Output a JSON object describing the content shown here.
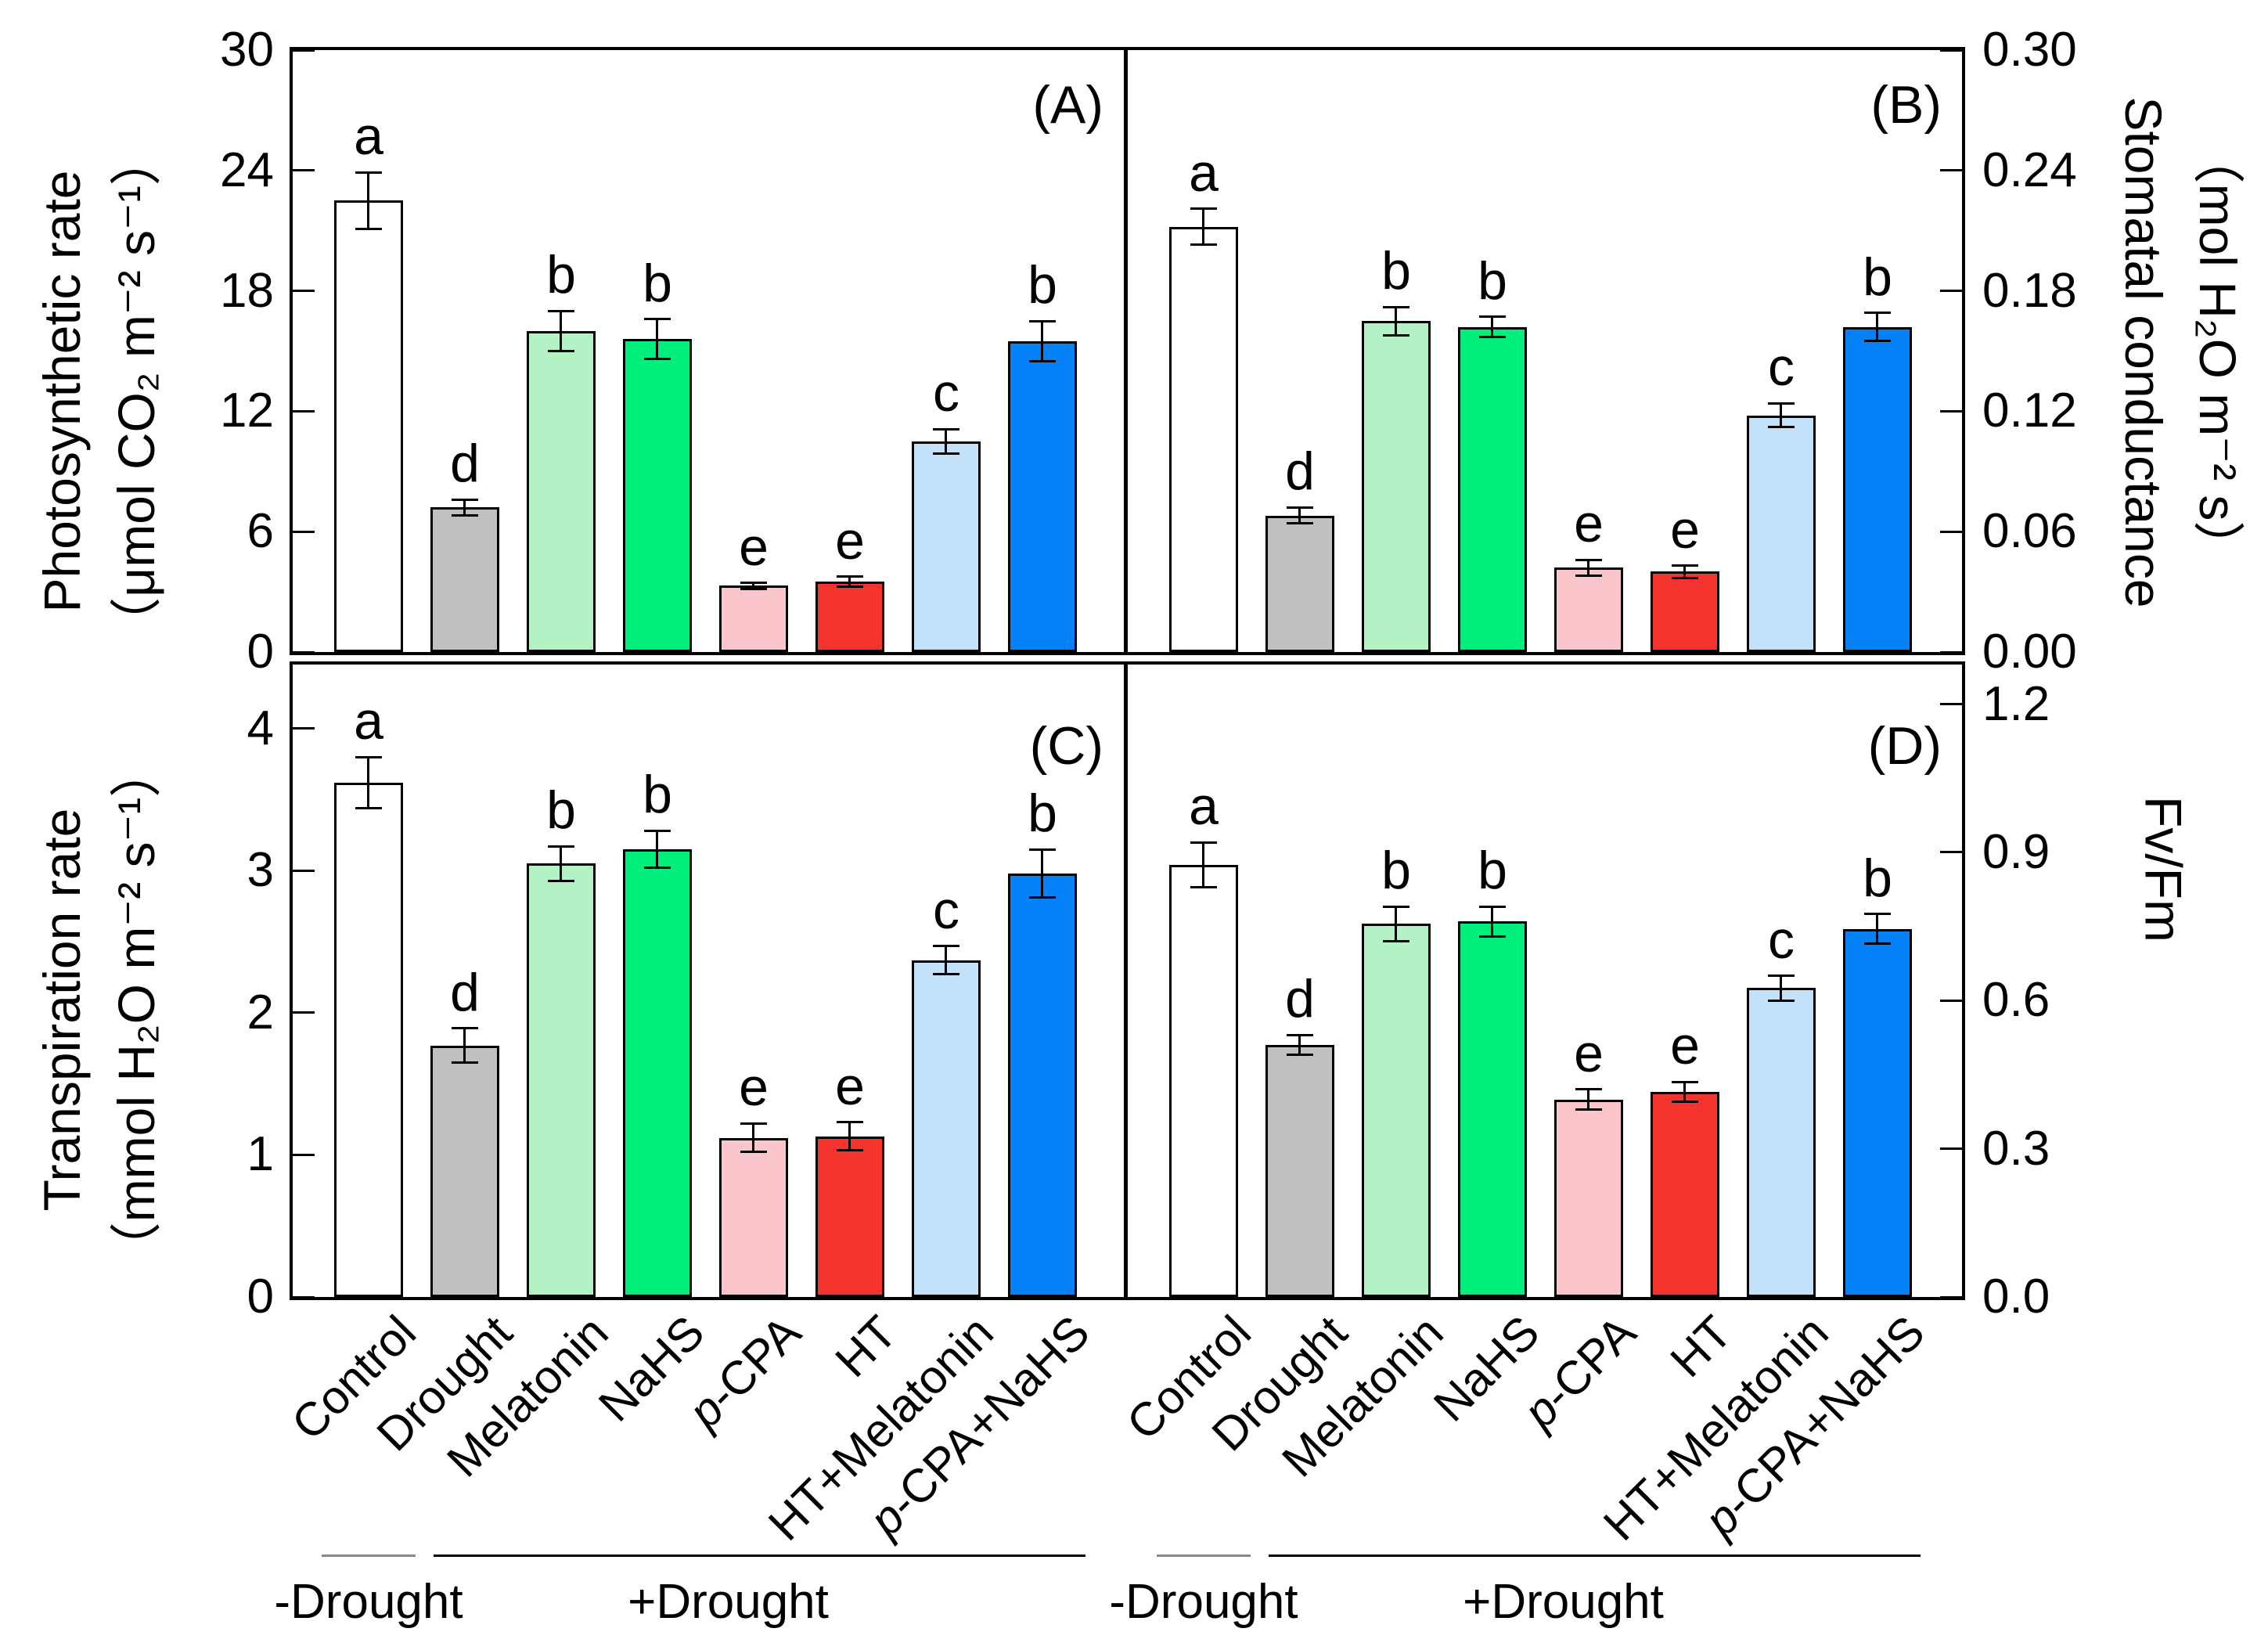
{
  "figure": {
    "categories": [
      "Control",
      "Drought",
      "Melatonin",
      "NaHS",
      "p-CPA",
      "HT",
      "HT+Melatonin",
      "p-CPA+NaHS"
    ],
    "bar_colors": [
      "#FFFFFF",
      "#C0C0C0",
      "#B2F2C4",
      "#00EE7C",
      "#FBC6CB",
      "#F53430",
      "#C3E1F8",
      "#0680F6"
    ],
    "bar_border_color": "#000000",
    "groups": [
      {
        "label": "-Drought",
        "start": 0,
        "end": 0
      },
      {
        "label": "+Drought",
        "start": 1,
        "end": 7
      }
    ]
  },
  "chart_data": [
    {
      "type": "bar",
      "panel": "A",
      "corner_label": "(A)",
      "axis_side": "left",
      "title_lines": [
        "Photosynthetic rate",
        "（μmol CO₂ m⁻² s⁻¹）"
      ],
      "ylabel": "Photosynthetic rate (umol CO2 m-2 s-1)",
      "ylim": [
        0,
        30
      ],
      "frame_top": 30,
      "ytick_labels": [
        "0",
        "6",
        "12",
        "18",
        "24",
        "30"
      ],
      "ytick_values": [
        0,
        6,
        12,
        18,
        24,
        30
      ],
      "values": [
        22.5,
        7.2,
        16.0,
        15.6,
        3.3,
        3.5,
        10.5,
        15.5
      ],
      "errors": [
        1.4,
        0.4,
        1.0,
        1.0,
        0.15,
        0.25,
        0.6,
        1.0
      ],
      "letters": [
        "a",
        "d",
        "b",
        "b",
        "e",
        "e",
        "c",
        "b"
      ]
    },
    {
      "type": "bar",
      "panel": "B",
      "corner_label": "(B)",
      "axis_side": "right",
      "title_lines": [
        "Stomatal conductance",
        "（mol H₂O m⁻² s）"
      ],
      "ylabel": "Stomatal conductance (mol H2O m-2 s)",
      "ylim": [
        0,
        0.3
      ],
      "frame_top": 0.3,
      "ytick_labels": [
        "0.00",
        "0.06",
        "0.12",
        "0.18",
        "0.24",
        "0.30"
      ],
      "ytick_values": [
        0,
        0.06,
        0.12,
        0.18,
        0.24,
        0.3
      ],
      "values": [
        0.212,
        0.068,
        0.165,
        0.162,
        0.042,
        0.04,
        0.118,
        0.162
      ],
      "errors": [
        0.009,
        0.004,
        0.007,
        0.005,
        0.004,
        0.003,
        0.006,
        0.007
      ],
      "letters": [
        "a",
        "d",
        "b",
        "b",
        "e",
        "e",
        "c",
        "b"
      ]
    },
    {
      "type": "bar",
      "panel": "C",
      "corner_label": "(C)",
      "axis_side": "left",
      "title_lines": [
        "Transpiration rate",
        "（mmol H₂O m⁻² s⁻¹）"
      ],
      "ylabel": "Transpiration rate (mmol H2O m-2 s-1)",
      "ylim": [
        0,
        4
      ],
      "frame_top": 4.45,
      "ytick_labels": [
        "0",
        "1",
        "2",
        "3",
        "4"
      ],
      "ytick_values": [
        0,
        1,
        2,
        3,
        4
      ],
      "values": [
        3.62,
        1.77,
        3.05,
        3.15,
        1.12,
        1.13,
        2.37,
        2.98
      ],
      "errors": [
        0.18,
        0.12,
        0.12,
        0.13,
        0.1,
        0.1,
        0.1,
        0.17
      ],
      "letters": [
        "a",
        "d",
        "b",
        "b",
        "e",
        "e",
        "c",
        "b"
      ]
    },
    {
      "type": "bar",
      "panel": "D",
      "corner_label": "(D)",
      "axis_side": "right",
      "title_lines": [
        "Fv/Fm"
      ],
      "ylabel": "Fv/Fm",
      "ylim": [
        0,
        1.2
      ],
      "frame_top": 1.28,
      "ytick_labels": [
        "0.0",
        "0.3",
        "0.6",
        "0.9",
        "1.2"
      ],
      "ytick_values": [
        0,
        0.3,
        0.6,
        0.9,
        1.2
      ],
      "values": [
        0.875,
        0.51,
        0.755,
        0.76,
        0.4,
        0.415,
        0.625,
        0.745
      ],
      "errors": [
        0.045,
        0.02,
        0.035,
        0.03,
        0.02,
        0.02,
        0.025,
        0.03
      ],
      "letters": [
        "a",
        "d",
        "b",
        "b",
        "e",
        "e",
        "c",
        "b"
      ]
    }
  ]
}
